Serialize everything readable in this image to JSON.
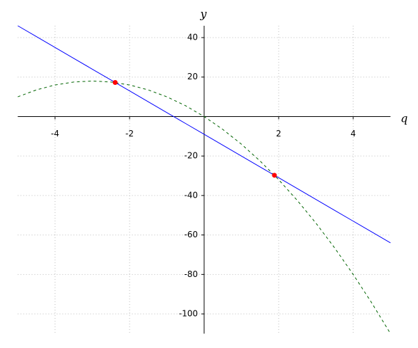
{
  "chart_data": {
    "type": "line",
    "x_label": "q",
    "y_label": "y",
    "x": [
      -5,
      -4.5,
      -4,
      -3.5,
      -3,
      -2.5,
      -2,
      -1.5,
      -1,
      -0.5,
      0,
      0.5,
      1,
      1.5,
      2,
      2.5,
      3,
      3.5,
      4,
      4.5,
      5
    ],
    "series": [
      {
        "color": "#0000ff",
        "dashed": false,
        "values": [
          46,
          40.5,
          35,
          29.5,
          24,
          18.5,
          13,
          7.5,
          2,
          -3.5,
          -9,
          -14.5,
          -20,
          -25.5,
          -31,
          -36.5,
          -42,
          -47.5,
          -53,
          -58.5,
          -64
        ]
      },
      {
        "color": "#006400",
        "dashed": true,
        "values": [
          10,
          13.5,
          16,
          17.5,
          18,
          17.5,
          16,
          13.5,
          10,
          5.5,
          0,
          -6.5,
          -14,
          -22.5,
          -32,
          -42.5,
          -54,
          -66.5,
          -80,
          -94.5,
          -110
        ]
      }
    ],
    "points": {
      "color": "#ff0000",
      "x": [
        -2.386,
        1.886
      ],
      "values": [
        17.25,
        -29.75
      ]
    },
    "xlim": [
      -5,
      5
    ],
    "ylim": [
      -110,
      46
    ],
    "xticks": [
      -4,
      -2,
      2,
      4
    ],
    "yticks": [
      -100,
      -80,
      -60,
      -40,
      -20,
      20,
      40
    ],
    "grid": true
  }
}
